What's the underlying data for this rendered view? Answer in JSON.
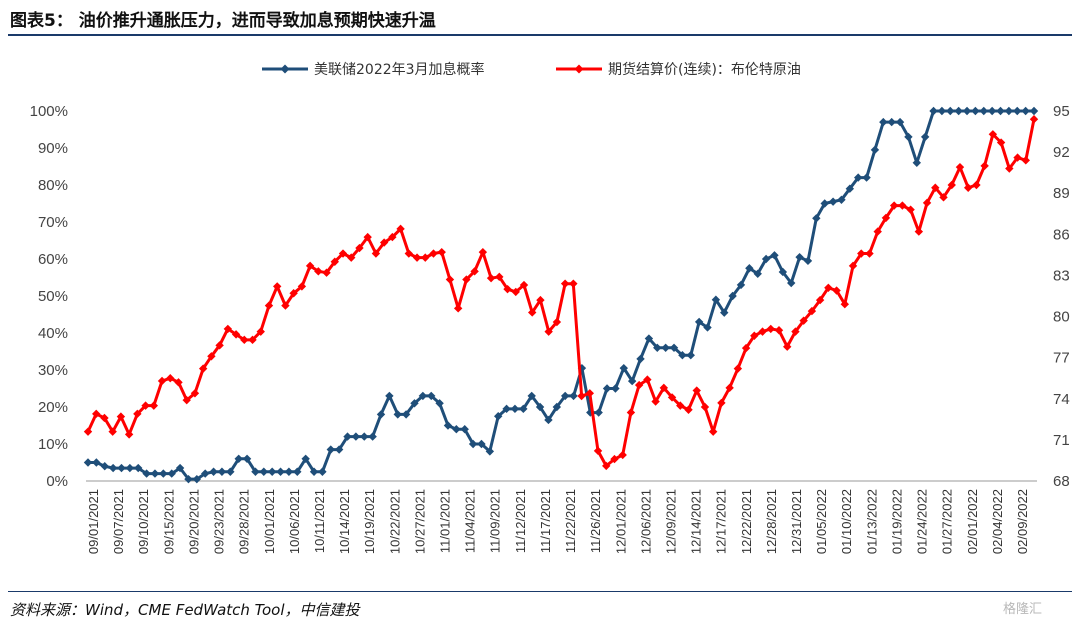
{
  "header": {
    "title": "图表5： 油价推升通胀压力，进而导致加息预期快速升温"
  },
  "footer": {
    "source": "资料来源：Wind，CME FedWatch Tool，中信建投",
    "watermark": "格隆汇"
  },
  "colors": {
    "series_blue": "#1f4e79",
    "series_red": "#ff0000",
    "title_rule": "#1a3a6a"
  },
  "chart_data": {
    "type": "line",
    "legend_position": "top-center",
    "grid": false,
    "x_tick_labels": [
      "09/01/2021",
      "09/07/2021",
      "09/10/2021",
      "09/15/2021",
      "09/20/2021",
      "09/23/2021",
      "09/28/2021",
      "10/01/2021",
      "10/06/2021",
      "10/11/2021",
      "10/14/2021",
      "10/19/2021",
      "10/22/2021",
      "10/27/2021",
      "11/01/2021",
      "11/04/2021",
      "11/09/2021",
      "11/12/2021",
      "11/17/2021",
      "11/22/2021",
      "11/26/2021",
      "12/01/2021",
      "12/06/2021",
      "12/09/2021",
      "12/14/2021",
      "12/17/2021",
      "12/22/2021",
      "12/28/2021",
      "12/31/2021",
      "01/05/2022",
      "01/10/2022",
      "01/13/2022",
      "01/19/2022",
      "01/24/2022",
      "01/27/2022",
      "02/01/2022",
      "02/04/2022",
      "02/09/2022"
    ],
    "y_left": {
      "ticks": [
        "0%",
        "10%",
        "20%",
        "30%",
        "40%",
        "50%",
        "60%",
        "70%",
        "80%",
        "90%",
        "100%"
      ],
      "lim": [
        0,
        100
      ]
    },
    "y_right": {
      "ticks": [
        "68",
        "71",
        "74",
        "77",
        "80",
        "83",
        "86",
        "89",
        "92",
        "95"
      ],
      "lim": [
        68,
        95
      ]
    },
    "series": [
      {
        "name": "美联储2022年3月加息概率",
        "axis": "left",
        "color": "#1f4e79",
        "marker": "diamond",
        "values": [
          5,
          5,
          4,
          3.5,
          3.5,
          3.5,
          3.5,
          2,
          2,
          2,
          2,
          3.5,
          0.5,
          0.5,
          2,
          2.5,
          2.5,
          2.5,
          6,
          6,
          2.5,
          2.5,
          2.5,
          2.5,
          2.5,
          2.5,
          6,
          2.5,
          2.5,
          8.5,
          8.5,
          12,
          12,
          12,
          12,
          18,
          23,
          18,
          18,
          21,
          23,
          23,
          21,
          15,
          14,
          14,
          10,
          10,
          8,
          17.5,
          19.5,
          19.5,
          19.5,
          23,
          20,
          16.5,
          20,
          23,
          23,
          30.5,
          18.5,
          18.5,
          25,
          25,
          30.5,
          27,
          33,
          38.5,
          36,
          36,
          36,
          34,
          34,
          43,
          41.5,
          49,
          45.5,
          50,
          53,
          57.5,
          56,
          60,
          61,
          56.5,
          53.5,
          60.5,
          59.5,
          71,
          75,
          75.5,
          76,
          79,
          82,
          82,
          89.5,
          97,
          97,
          97,
          93,
          86,
          93,
          100,
          100,
          100,
          100,
          100,
          100,
          100,
          100,
          100,
          100,
          100,
          100,
          100
        ]
      },
      {
        "name": "期货结算价(连续)：布伦特原油",
        "axis": "right",
        "color": "#ff0000",
        "marker": "diamond",
        "values": [
          71.6,
          72.9,
          72.6,
          71.6,
          72.7,
          71.4,
          72.9,
          73.5,
          73.5,
          75.3,
          75.5,
          75.2,
          73.9,
          74.4,
          76.2,
          77.1,
          77.9,
          79.1,
          78.7,
          78.3,
          78.3,
          78.9,
          80.8,
          82.2,
          80.8,
          81.7,
          82.2,
          83.7,
          83.3,
          83.2,
          84.0,
          84.6,
          84.3,
          85.0,
          85.8,
          84.6,
          85.4,
          85.8,
          86.4,
          84.6,
          84.3,
          84.3,
          84.6,
          84.7,
          82.7,
          80.6,
          82.7,
          83.3,
          84.7,
          82.8,
          82.9,
          82.0,
          81.8,
          82.3,
          80.3,
          81.2,
          78.9,
          79.6,
          82.4,
          82.4,
          74.2,
          74.4,
          70.2,
          69.1,
          69.6,
          69.9,
          73.0,
          75.0,
          75.4,
          73.8,
          74.8,
          74.1,
          73.5,
          73.2,
          74.6,
          73.4,
          71.6,
          73.7,
          74.8,
          76.2,
          77.7,
          78.6,
          78.9,
          79.1,
          79.0,
          77.8,
          78.9,
          79.7,
          80.4,
          81.2,
          82.1,
          81.9,
          80.9,
          83.7,
          84.6,
          84.6,
          86.2,
          87.2,
          88.1,
          88.1,
          87.8,
          86.2,
          88.3,
          89.4,
          88.7,
          89.6,
          90.9,
          89.4,
          89.6,
          91.0,
          93.3,
          92.7,
          90.8,
          91.6,
          91.4,
          94.4
        ]
      }
    ]
  }
}
